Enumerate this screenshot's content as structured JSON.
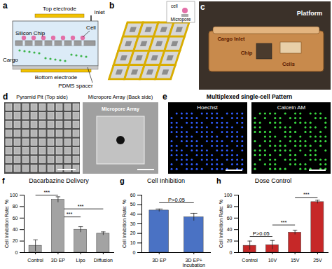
{
  "figure": {
    "a": {
      "label": "a",
      "top_electrode": "Top electrode",
      "inlet": "Inlet",
      "cell": "Cell",
      "silicon_chip": "Silicon Chip",
      "cargo": "Cargo",
      "bottom_electrode": "Bottom electrode",
      "pdms_spacer": "PDMS spacer"
    },
    "b": {
      "label": "b",
      "cell": "cell",
      "micropore": "Micropore"
    },
    "c": {
      "label": "c",
      "platform": "Platform",
      "cargo_inlet": "Cargo Inlet",
      "chip": "Chip",
      "cells": "Cells"
    },
    "d": {
      "label": "d",
      "left_title": "Pyramid Pit (Top side)",
      "right_title": "Micropore Array (Back side)",
      "inset_label": "Micropore Array"
    },
    "e": {
      "label": "e",
      "title": "Multiplexed single-cell Pattern",
      "left_stain": "Hoechst",
      "right_stain": "Calcein AM"
    }
  },
  "chart_data": [
    {
      "panel": "f",
      "type": "bar",
      "title": "Dacarbazine Delivery",
      "y_label": "Cell Inhibition Rate: %",
      "categories": [
        "Control",
        "3D EP",
        "Lipo",
        "Diffusion"
      ],
      "values": [
        12,
        92,
        40,
        33
      ],
      "errors": [
        10,
        5,
        5,
        3
      ],
      "color": "#a3a3a3",
      "ylim": [
        0,
        100
      ],
      "yticks": [
        0,
        20,
        40,
        60,
        80,
        100
      ],
      "annotations": [
        {
          "text": "***",
          "from": "Control",
          "to": "3D EP",
          "y": 100
        },
        {
          "text": "***",
          "from": "3D EP",
          "to": "Diffusion",
          "y": 76
        },
        {
          "text": "***",
          "from": "3D EP",
          "to": "Lipo",
          "y": 62
        }
      ]
    },
    {
      "panel": "g",
      "type": "bar",
      "title": "Cell Inhibition",
      "y_label": "Cell Inhibition Rate: %",
      "categories": [
        "3D EP",
        "3D EP+ Incubation"
      ],
      "values": [
        44,
        37
      ],
      "errors": [
        1.5,
        4
      ],
      "color": "#4a72c4",
      "ylim": [
        0,
        60
      ],
      "yticks": [
        0,
        10,
        20,
        30,
        40,
        50,
        60
      ],
      "annotations": [
        {
          "text": "P>0.05",
          "from": "3D EP",
          "to": "3D EP+ Incubation",
          "y": 52
        }
      ]
    },
    {
      "panel": "h",
      "type": "bar",
      "title": "Dose Control",
      "y_label": "Cell Inhibition Rate: %",
      "categories": [
        "Control",
        "10V",
        "15V",
        "25V"
      ],
      "values": [
        12,
        13,
        35,
        88
      ],
      "errors": [
        8,
        8,
        4,
        3
      ],
      "color": "#c62828",
      "ylim": [
        0,
        100
      ],
      "yticks": [
        0,
        20,
        40,
        60,
        80,
        100
      ],
      "annotations": [
        {
          "text": "P>0.05",
          "from": "Control",
          "to": "10V",
          "y": 28
        },
        {
          "text": "***",
          "from": "10V",
          "to": "15V",
          "y": 48
        },
        {
          "text": "***",
          "from": "15V",
          "to": "25V",
          "y": 96
        }
      ]
    }
  ]
}
